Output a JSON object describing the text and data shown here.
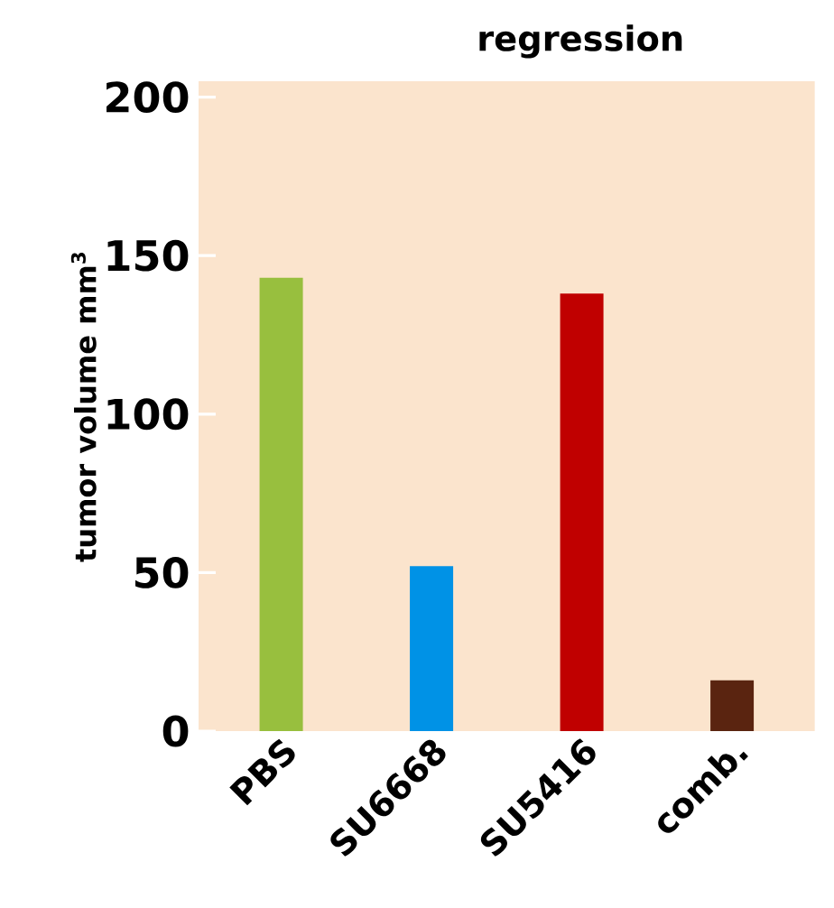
{
  "chart_data": {
    "type": "bar",
    "title": "regression",
    "ylabel": "tumor volume mm$^{3}$",
    "categories": [
      "PBS",
      "SU6668",
      "SU5416",
      "comb."
    ],
    "values": [
      143,
      52,
      138,
      16
    ],
    "colors": [
      "#98bf3e",
      "#0092e6",
      "#c00000",
      "#5a2410"
    ],
    "ylim": [
      0,
      205
    ],
    "yticks": [
      0,
      50,
      100,
      150,
      200
    ],
    "grid": false
  }
}
